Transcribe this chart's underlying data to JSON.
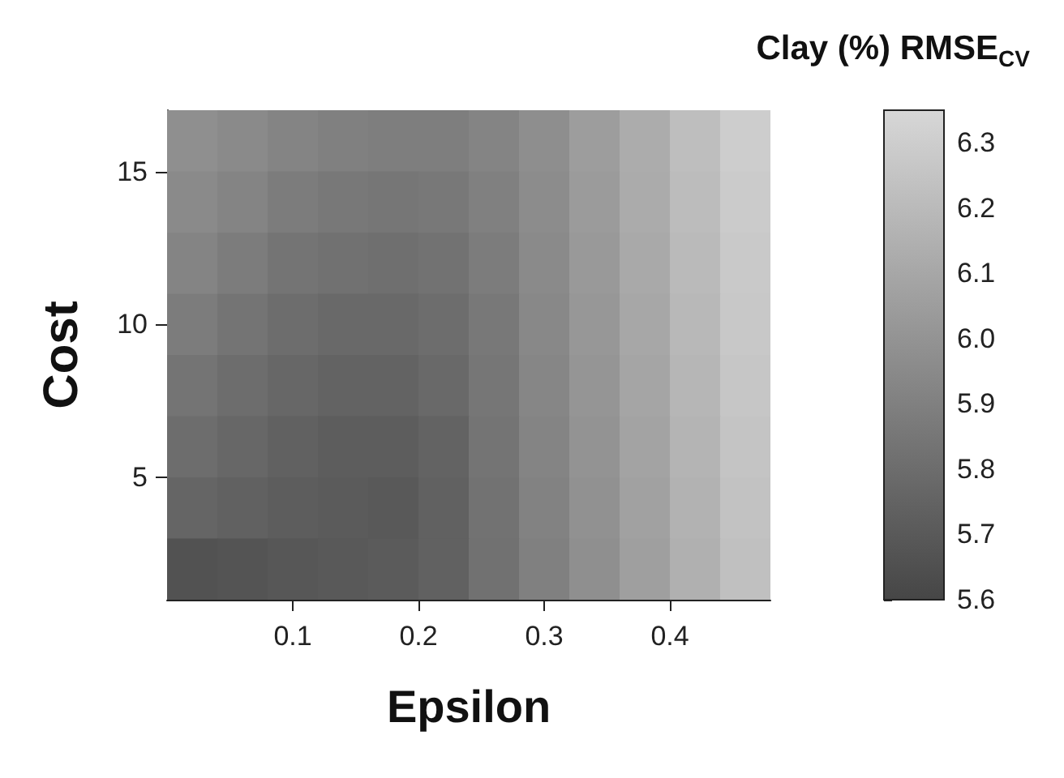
{
  "chart_data": {
    "type": "heatmap",
    "clabel": "Clay (%) RMSE$_{CV}$",
    "xlabel": "Epsilon",
    "ylabel": "Cost",
    "x": [
      0.02,
      0.06,
      0.1,
      0.14,
      0.18,
      0.22,
      0.26,
      0.3,
      0.34,
      0.38,
      0.42,
      0.46
    ],
    "y": [
      16,
      14,
      12,
      10,
      8,
      6,
      4,
      2
    ],
    "cells": [
      [
        5.98,
        5.95,
        5.92,
        5.9,
        5.89,
        5.89,
        5.92,
        5.97,
        6.05,
        6.13,
        6.22,
        6.3
      ],
      [
        5.95,
        5.92,
        5.88,
        5.86,
        5.85,
        5.86,
        5.9,
        5.96,
        6.04,
        6.12,
        6.21,
        6.29
      ],
      [
        5.92,
        5.88,
        5.84,
        5.82,
        5.81,
        5.83,
        5.88,
        5.95,
        6.03,
        6.11,
        6.2,
        6.28
      ],
      [
        5.88,
        5.84,
        5.8,
        5.78,
        5.78,
        5.8,
        5.86,
        5.94,
        6.02,
        6.1,
        6.19,
        6.27
      ],
      [
        5.84,
        5.8,
        5.77,
        5.75,
        5.75,
        5.78,
        5.85,
        5.93,
        6.01,
        6.09,
        6.18,
        6.26
      ],
      [
        5.8,
        5.77,
        5.74,
        5.72,
        5.72,
        5.75,
        5.84,
        5.92,
        6.0,
        6.08,
        6.17,
        6.25
      ],
      [
        5.76,
        5.74,
        5.72,
        5.71,
        5.7,
        5.74,
        5.83,
        5.91,
        5.99,
        6.07,
        6.16,
        6.24
      ],
      [
        5.66,
        5.67,
        5.69,
        5.7,
        5.71,
        5.74,
        5.82,
        5.9,
        5.98,
        6.06,
        6.15,
        6.23
      ]
    ],
    "xlim": [
      0,
      0.48
    ],
    "xticks": [
      0.1,
      0.2,
      0.3,
      0.4
    ],
    "ylim": [
      1,
      17
    ],
    "yticks": [
      5,
      10,
      15
    ],
    "clim": [
      5.6,
      6.35
    ],
    "cticks": [
      5.6,
      5.7,
      5.8,
      5.9,
      {
        "value": 6,
        "label": "6.0"
      },
      6.1,
      6.2,
      6.3
    ]
  }
}
